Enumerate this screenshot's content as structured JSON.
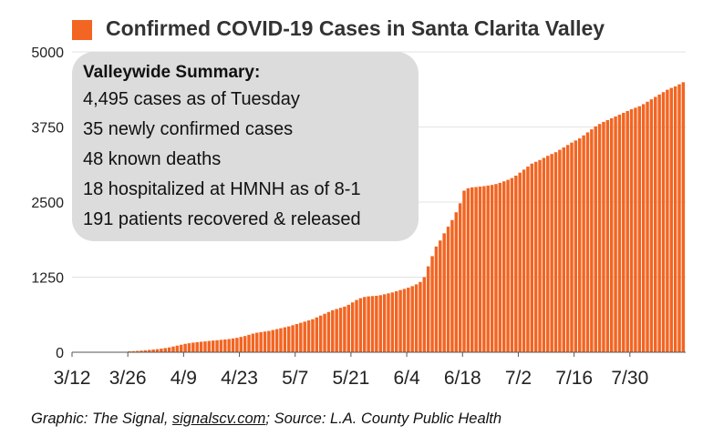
{
  "colors": {
    "bar": "#f26522",
    "grid": "#e3e3e3",
    "axis": "#555555",
    "panel": "#dcdcdc"
  },
  "chart_data": {
    "type": "bar",
    "title": "Confirmed COVID-19 Cases in Santa Clarita Valley",
    "legend": {
      "placement": "top-left"
    },
    "grid": true,
    "ylim": [
      0,
      5000
    ],
    "y_ticks": [
      "0",
      "1250",
      "2500",
      "3750",
      "5000"
    ],
    "x_start": "3/12",
    "x_ticks": [
      "3/12",
      "3/26",
      "4/9",
      "4/23",
      "5/7",
      "5/21",
      "6/4",
      "6/18",
      "7/2",
      "7/16",
      "7/30"
    ],
    "series": [
      {
        "values": [
          0,
          0,
          0,
          0,
          0,
          0,
          0,
          0,
          0,
          0,
          0,
          0,
          0,
          0,
          15,
          18,
          22,
          27,
          33,
          39,
          45,
          52,
          60,
          70,
          80,
          95,
          110,
          125,
          140,
          150,
          160,
          167,
          175,
          180,
          188,
          195,
          200,
          207,
          212,
          220,
          230,
          240,
          255,
          270,
          290,
          310,
          325,
          335,
          345,
          355,
          370,
          385,
          400,
          415,
          430,
          450,
          470,
          490,
          510,
          530,
          550,
          580,
          610,
          640,
          670,
          700,
          720,
          740,
          760,
          790,
          830,
          870,
          900,
          920,
          930,
          935,
          940,
          950,
          965,
          980,
          995,
          1015,
          1035,
          1055,
          1075,
          1100,
          1130,
          1170,
          1250,
          1430,
          1600,
          1760,
          1860,
          1980,
          2090,
          2200,
          2330,
          2480,
          2690,
          2730,
          2745,
          2750,
          2758,
          2765,
          2775,
          2785,
          2800,
          2820,
          2845,
          2870,
          2900,
          2940,
          2990,
          3040,
          3090,
          3140,
          3170,
          3200,
          3235,
          3270,
          3300,
          3330,
          3370,
          3410,
          3450,
          3490,
          3525,
          3560,
          3610,
          3660,
          3710,
          3760,
          3800,
          3835,
          3865,
          3895,
          3925,
          3955,
          3985,
          4015,
          4045,
          4070,
          4095,
          4130,
          4170,
          4210,
          4250,
          4290,
          4330,
          4370,
          4400,
          4425,
          4460,
          4495
        ]
      }
    ]
  },
  "summary": {
    "title": "Valleywide Summary:",
    "lines": [
      "4,495 cases as of Tuesday",
      "35 newly confirmed cases",
      "48 known deaths",
      "18 hospitalized at HMNH as of 8-1",
      "191 patients recovered & released"
    ]
  },
  "footer": {
    "prefix": "Graphic: The Signal, ",
    "site": "signalscv.com",
    "suffix": "; Source: L.A. County Public Health"
  }
}
